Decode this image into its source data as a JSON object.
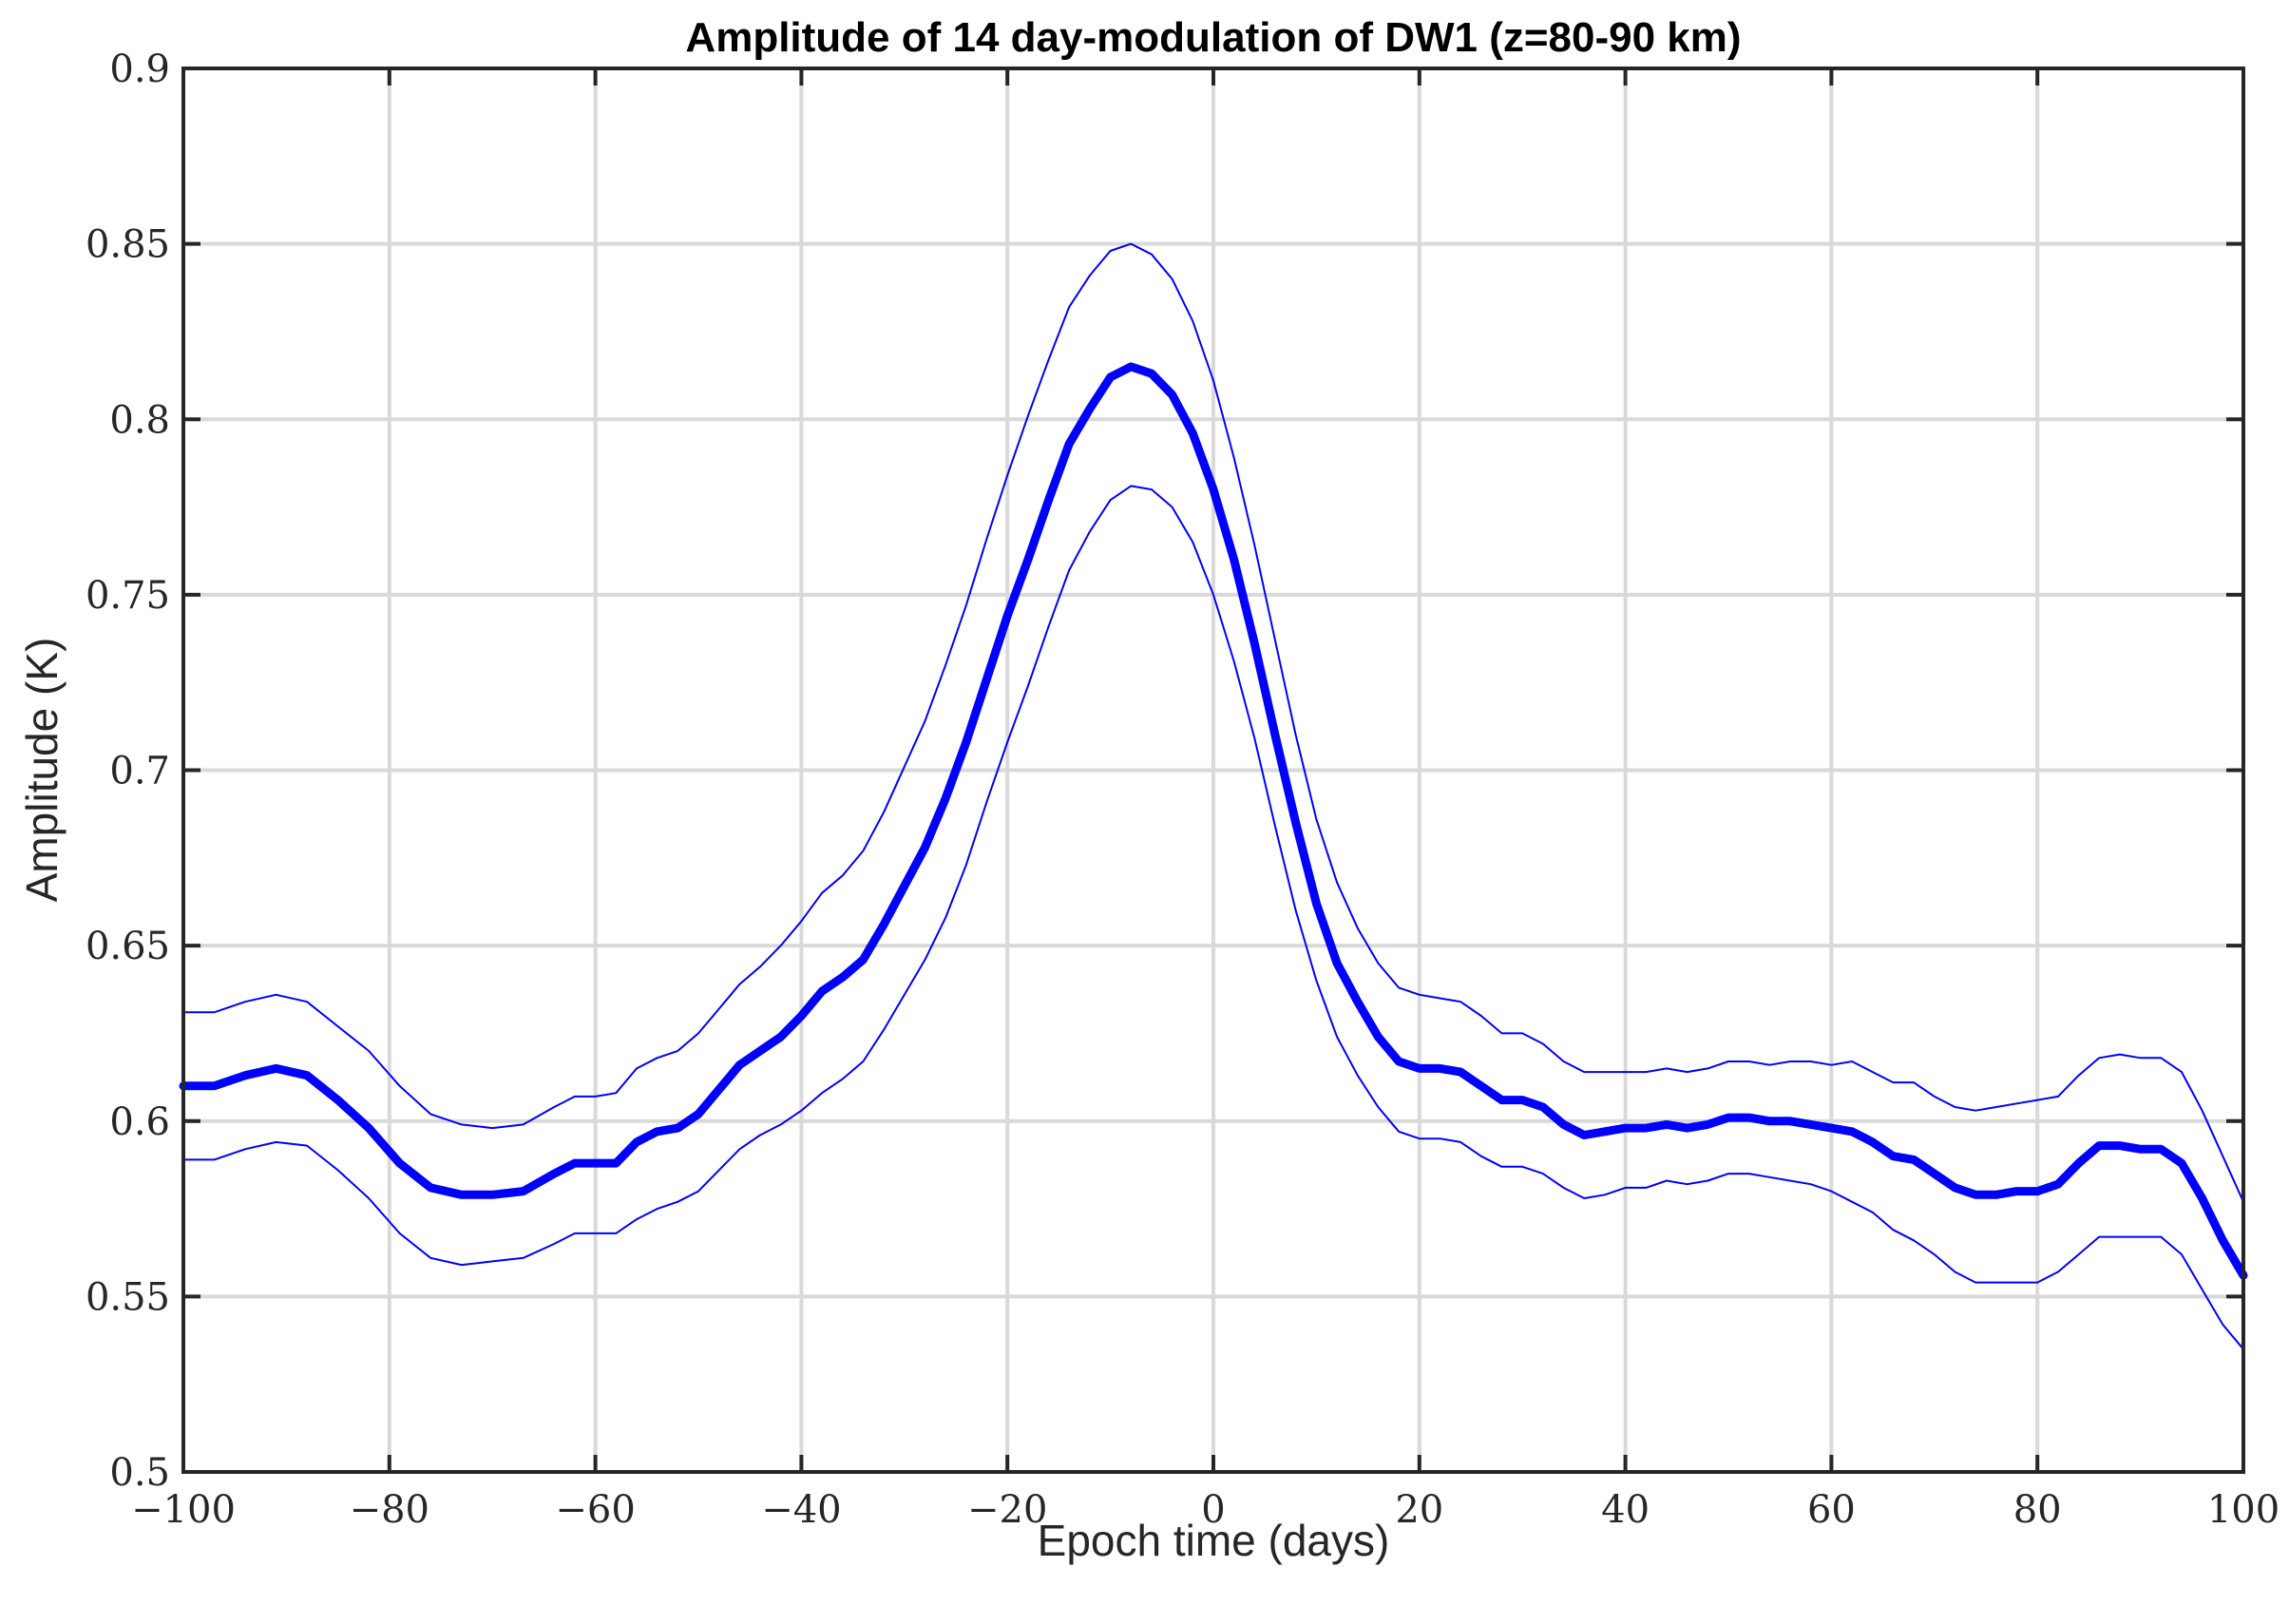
{
  "chart_data": {
    "type": "line",
    "title": "Amplitude of 14 day-modulation of DW1 (z=80-90 km)",
    "xlabel": "Epoch time (days)",
    "ylabel": "Amplitude (K)",
    "xlim": [
      -100,
      100
    ],
    "ylim": [
      0.5,
      0.9
    ],
    "xticks": [
      -100,
      -80,
      -60,
      -40,
      -20,
      0,
      20,
      40,
      60,
      80,
      100
    ],
    "xtick_labels": [
      "−100",
      "−80",
      "−60",
      "−40",
      "−20",
      "0",
      "20",
      "40",
      "60",
      "80",
      "100"
    ],
    "yticks": [
      0.5,
      0.55,
      0.6,
      0.65,
      0.7,
      0.75,
      0.8,
      0.85,
      0.9
    ],
    "ytick_labels": [
      "0.5",
      "0.55",
      "0.6",
      "0.65",
      "0.7",
      "0.75",
      "0.8",
      "0.85",
      "0.9"
    ],
    "grid": true,
    "series": [
      {
        "role": "mean",
        "color": "#0000ff",
        "x": [
          -100,
          -97,
          -94,
          -91,
          -88,
          -85,
          -82,
          -79,
          -76,
          -73,
          -70,
          -67,
          -64,
          -62,
          -60,
          -58,
          -56,
          -54,
          -52,
          -50,
          -48,
          -46,
          -44,
          -42,
          -40,
          -38,
          -36,
          -34,
          -32,
          -30,
          -28,
          -26,
          -24,
          -22,
          -20,
          -18,
          -16,
          -14,
          -12,
          -10,
          -8,
          -6,
          -4,
          -2,
          0,
          2,
          4,
          6,
          8,
          10,
          12,
          14,
          16,
          18,
          20,
          22,
          24,
          26,
          28,
          30,
          32,
          34,
          36,
          38,
          40,
          42,
          44,
          46,
          48,
          50,
          52,
          54,
          56,
          58,
          60,
          62,
          64,
          66,
          68,
          70,
          72,
          74,
          76,
          78,
          80,
          82,
          84,
          86,
          88,
          90,
          92,
          94,
          96,
          98,
          100
        ],
        "y": [
          0.61,
          0.61,
          0.613,
          0.615,
          0.613,
          0.606,
          0.598,
          0.588,
          0.581,
          0.579,
          0.579,
          0.58,
          0.585,
          0.588,
          0.588,
          0.588,
          0.594,
          0.597,
          0.598,
          0.602,
          0.609,
          0.616,
          0.62,
          0.624,
          0.63,
          0.637,
          0.641,
          0.646,
          0.656,
          0.667,
          0.678,
          0.692,
          0.708,
          0.726,
          0.744,
          0.76,
          0.777,
          0.793,
          0.803,
          0.812,
          0.815,
          0.813,
          0.807,
          0.796,
          0.78,
          0.76,
          0.736,
          0.71,
          0.685,
          0.662,
          0.645,
          0.634,
          0.624,
          0.617,
          0.615,
          0.615,
          0.614,
          0.61,
          0.606,
          0.606,
          0.604,
          0.599,
          0.596,
          0.597,
          0.598,
          0.598,
          0.599,
          0.598,
          0.599,
          0.601,
          0.601,
          0.6,
          0.6,
          0.599,
          0.598,
          0.597,
          0.594,
          0.59,
          0.589,
          0.585,
          0.581,
          0.579,
          0.579,
          0.58,
          0.58,
          0.582,
          0.588,
          0.593,
          0.593,
          0.592,
          0.592,
          0.588,
          0.578,
          0.566,
          0.556
        ]
      },
      {
        "role": "upper",
        "color": "#0000ff",
        "x": [
          -100,
          -97,
          -94,
          -91,
          -88,
          -85,
          -82,
          -79,
          -76,
          -73,
          -70,
          -67,
          -64,
          -62,
          -60,
          -58,
          -56,
          -54,
          -52,
          -50,
          -48,
          -46,
          -44,
          -42,
          -40,
          -38,
          -36,
          -34,
          -32,
          -30,
          -28,
          -26,
          -24,
          -22,
          -20,
          -18,
          -16,
          -14,
          -12,
          -10,
          -8,
          -6,
          -4,
          -2,
          0,
          2,
          4,
          6,
          8,
          10,
          12,
          14,
          16,
          18,
          20,
          22,
          24,
          26,
          28,
          30,
          32,
          34,
          36,
          38,
          40,
          42,
          44,
          46,
          48,
          50,
          52,
          54,
          56,
          58,
          60,
          62,
          64,
          66,
          68,
          70,
          72,
          74,
          76,
          78,
          80,
          82,
          84,
          86,
          88,
          90,
          92,
          94,
          96,
          98,
          100
        ],
        "y": [
          0.631,
          0.631,
          0.634,
          0.636,
          0.634,
          0.627,
          0.62,
          0.61,
          0.602,
          0.599,
          0.598,
          0.599,
          0.604,
          0.607,
          0.607,
          0.608,
          0.615,
          0.618,
          0.62,
          0.625,
          0.632,
          0.639,
          0.644,
          0.65,
          0.657,
          0.665,
          0.67,
          0.677,
          0.688,
          0.701,
          0.714,
          0.73,
          0.747,
          0.766,
          0.784,
          0.801,
          0.817,
          0.832,
          0.841,
          0.848,
          0.85,
          0.847,
          0.84,
          0.828,
          0.811,
          0.789,
          0.764,
          0.737,
          0.71,
          0.686,
          0.668,
          0.655,
          0.645,
          0.638,
          0.636,
          0.635,
          0.634,
          0.63,
          0.625,
          0.625,
          0.622,
          0.617,
          0.614,
          0.614,
          0.614,
          0.614,
          0.615,
          0.614,
          0.615,
          0.617,
          0.617,
          0.616,
          0.617,
          0.617,
          0.616,
          0.617,
          0.614,
          0.611,
          0.611,
          0.607,
          0.604,
          0.603,
          0.604,
          0.605,
          0.606,
          0.607,
          0.613,
          0.618,
          0.619,
          0.618,
          0.618,
          0.614,
          0.603,
          0.59,
          0.577
        ]
      },
      {
        "role": "lower",
        "color": "#0000ff",
        "x": [
          -100,
          -97,
          -94,
          -91,
          -88,
          -85,
          -82,
          -79,
          -76,
          -73,
          -70,
          -67,
          -64,
          -62,
          -60,
          -58,
          -56,
          -54,
          -52,
          -50,
          -48,
          -46,
          -44,
          -42,
          -40,
          -38,
          -36,
          -34,
          -32,
          -30,
          -28,
          -26,
          -24,
          -22,
          -20,
          -18,
          -16,
          -14,
          -12,
          -10,
          -8,
          -6,
          -4,
          -2,
          0,
          2,
          4,
          6,
          8,
          10,
          12,
          14,
          16,
          18,
          20,
          22,
          24,
          26,
          28,
          30,
          32,
          34,
          36,
          38,
          40,
          42,
          44,
          46,
          48,
          50,
          52,
          54,
          56,
          58,
          60,
          62,
          64,
          66,
          68,
          70,
          72,
          74,
          76,
          78,
          80,
          82,
          84,
          86,
          88,
          90,
          92,
          94,
          96,
          98,
          100
        ],
        "y": [
          0.589,
          0.589,
          0.592,
          0.594,
          0.593,
          0.586,
          0.578,
          0.568,
          0.561,
          0.559,
          0.56,
          0.561,
          0.565,
          0.568,
          0.568,
          0.568,
          0.572,
          0.575,
          0.577,
          0.58,
          0.586,
          0.592,
          0.596,
          0.599,
          0.603,
          0.608,
          0.612,
          0.617,
          0.626,
          0.636,
          0.646,
          0.658,
          0.673,
          0.691,
          0.708,
          0.724,
          0.741,
          0.757,
          0.768,
          0.777,
          0.781,
          0.78,
          0.775,
          0.765,
          0.75,
          0.731,
          0.709,
          0.684,
          0.66,
          0.64,
          0.624,
          0.613,
          0.604,
          0.597,
          0.595,
          0.595,
          0.594,
          0.59,
          0.587,
          0.587,
          0.585,
          0.581,
          0.578,
          0.579,
          0.581,
          0.581,
          0.583,
          0.582,
          0.583,
          0.585,
          0.585,
          0.584,
          0.583,
          0.582,
          0.58,
          0.577,
          0.574,
          0.569,
          0.566,
          0.562,
          0.557,
          0.554,
          0.554,
          0.554,
          0.554,
          0.557,
          0.562,
          0.567,
          0.567,
          0.567,
          0.567,
          0.562,
          0.552,
          0.542,
          0.535
        ]
      }
    ]
  }
}
